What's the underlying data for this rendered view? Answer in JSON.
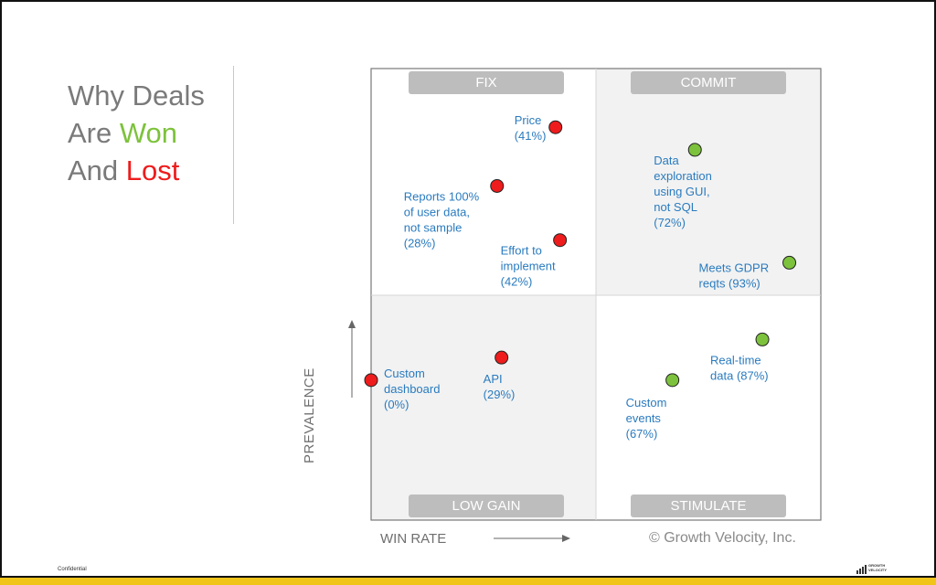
{
  "slide": {
    "title_line1": "Why Deals",
    "title_line2_prefix": "Are ",
    "title_line2_highlight": "Won",
    "title_line3_prefix": "And ",
    "title_line3_highlight": "Lost",
    "copyright": "© Growth Velocity, Inc.",
    "footer_confidential": "Confidential",
    "logo_text_line1": "GROWTH",
    "logo_text_line2": "VELOCITY"
  },
  "colors": {
    "won": "#7dc23c",
    "lost": "#ee1c1c",
    "title_gray": "#7a7a7a",
    "label_blue": "#2a7bbf",
    "quadrant_pill": "#bdbdbd",
    "bottom_band": "#f0c419"
  },
  "chart_data": {
    "type": "scatter",
    "xlabel": "WIN RATE",
    "ylabel": "PREVALENCE",
    "quadrants": {
      "top_left": "FIX",
      "top_right": "COMMIT",
      "bottom_left": "LOW GAIN",
      "bottom_right": "STIMULATE"
    },
    "points": [
      {
        "label_lines": [
          "Price",
          "(41%)"
        ],
        "win_rate": 41,
        "prevalence": 0.87,
        "status": "lost"
      },
      {
        "label_lines": [
          "Reports 100%",
          "of user data,",
          "not sample",
          "(28%)"
        ],
        "win_rate": 28,
        "prevalence": 0.74,
        "status": "lost"
      },
      {
        "label_lines": [
          "Effort to",
          "implement",
          "(42%)"
        ],
        "win_rate": 42,
        "prevalence": 0.62,
        "status": "lost"
      },
      {
        "label_lines": [
          "Data",
          "exploration",
          "using GUI,",
          "not SQL",
          "(72%)"
        ],
        "win_rate": 72,
        "prevalence": 0.82,
        "status": "won"
      },
      {
        "label_lines": [
          "Meets GDPR",
          "reqts (93%)"
        ],
        "win_rate": 93,
        "prevalence": 0.57,
        "status": "won"
      },
      {
        "label_lines": [
          "Custom",
          "dashboard",
          "(0%)"
        ],
        "win_rate": 0,
        "prevalence": 0.31,
        "status": "lost"
      },
      {
        "label_lines": [
          "API",
          "(29%)"
        ],
        "win_rate": 29,
        "prevalence": 0.36,
        "status": "lost"
      },
      {
        "label_lines": [
          "Real-time",
          "data (87%)"
        ],
        "win_rate": 87,
        "prevalence": 0.4,
        "status": "won"
      },
      {
        "label_lines": [
          "Custom",
          "events",
          "(67%)"
        ],
        "win_rate": 67,
        "prevalence": 0.31,
        "status": "won"
      }
    ]
  }
}
